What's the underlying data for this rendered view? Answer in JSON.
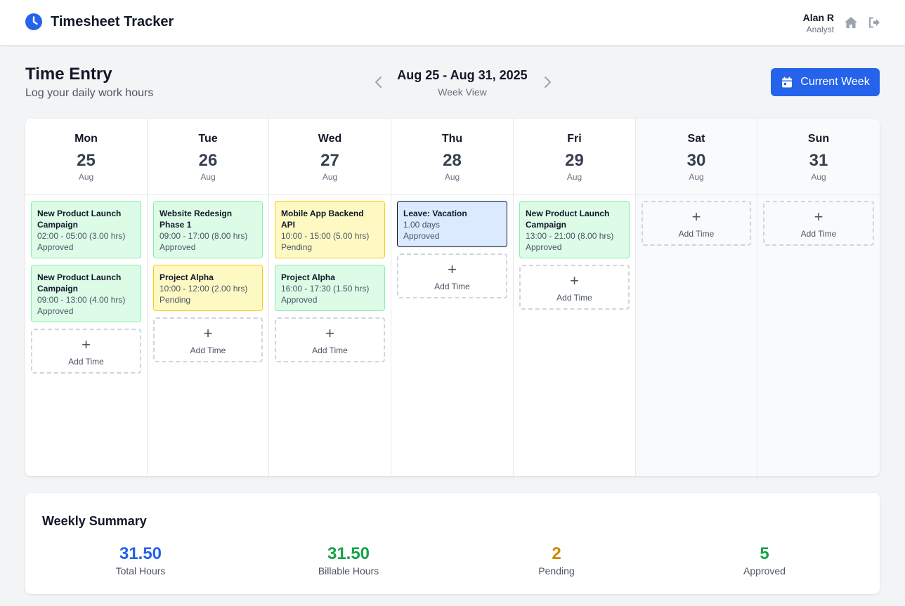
{
  "app": {
    "title": "Timesheet Tracker"
  },
  "user": {
    "name": "Alan R",
    "role": "Analyst"
  },
  "page": {
    "title": "Time Entry",
    "subtitle": "Log your daily work hours"
  },
  "week": {
    "range": "Aug 25 - Aug 31, 2025",
    "view": "Week View",
    "current_label": "Current Week"
  },
  "add_time": {
    "plus": "+",
    "label": "Add Time"
  },
  "days": [
    {
      "name": "Mon",
      "num": "25",
      "month": "Aug",
      "weekend": false,
      "entries": [
        {
          "title": "New Product Launch Campaign",
          "time": "02:00 - 05:00 (3.00 hrs)",
          "status": "Approved",
          "kind": "approved"
        },
        {
          "title": "New Product Launch Campaign",
          "time": "09:00 - 13:00 (4.00 hrs)",
          "status": "Approved",
          "kind": "approved"
        }
      ]
    },
    {
      "name": "Tue",
      "num": "26",
      "month": "Aug",
      "weekend": false,
      "entries": [
        {
          "title": "Website Redesign Phase 1",
          "time": "09:00 - 17:00 (8.00 hrs)",
          "status": "Approved",
          "kind": "approved"
        },
        {
          "title": "Project Alpha",
          "time": "10:00 - 12:00 (2.00 hrs)",
          "status": "Pending",
          "kind": "pending"
        }
      ]
    },
    {
      "name": "Wed",
      "num": "27",
      "month": "Aug",
      "weekend": false,
      "entries": [
        {
          "title": "Mobile App Backend API",
          "time": "10:00 - 15:00 (5.00 hrs)",
          "status": "Pending",
          "kind": "pending"
        },
        {
          "title": "Project Alpha",
          "time": "16:00 - 17:30 (1.50 hrs)",
          "status": "Approved",
          "kind": "approved"
        }
      ]
    },
    {
      "name": "Thu",
      "num": "28",
      "month": "Aug",
      "weekend": false,
      "entries": [
        {
          "title": "Leave: Vacation",
          "time": "1.00 days",
          "status": "Approved",
          "kind": "leave"
        }
      ]
    },
    {
      "name": "Fri",
      "num": "29",
      "month": "Aug",
      "weekend": false,
      "entries": [
        {
          "title": "New Product Launch Campaign",
          "time": "13:00 - 21:00 (8.00 hrs)",
          "status": "Approved",
          "kind": "approved"
        }
      ]
    },
    {
      "name": "Sat",
      "num": "30",
      "month": "Aug",
      "weekend": true,
      "entries": []
    },
    {
      "name": "Sun",
      "num": "31",
      "month": "Aug",
      "weekend": true,
      "entries": []
    }
  ],
  "summary": {
    "title": "Weekly Summary",
    "stats": [
      {
        "value": "31.50",
        "label": "Total Hours",
        "color": "#2563eb"
      },
      {
        "value": "31.50",
        "label": "Billable Hours",
        "color": "#16a34a"
      },
      {
        "value": "2",
        "label": "Pending",
        "color": "#ca8a04"
      },
      {
        "value": "5",
        "label": "Approved",
        "color": "#16a34a"
      }
    ]
  },
  "colors": {
    "accent": "#2563eb",
    "approved_bg": "#dcfce7",
    "pending_bg": "#fef9c3",
    "leave_bg": "#dbeafe"
  }
}
